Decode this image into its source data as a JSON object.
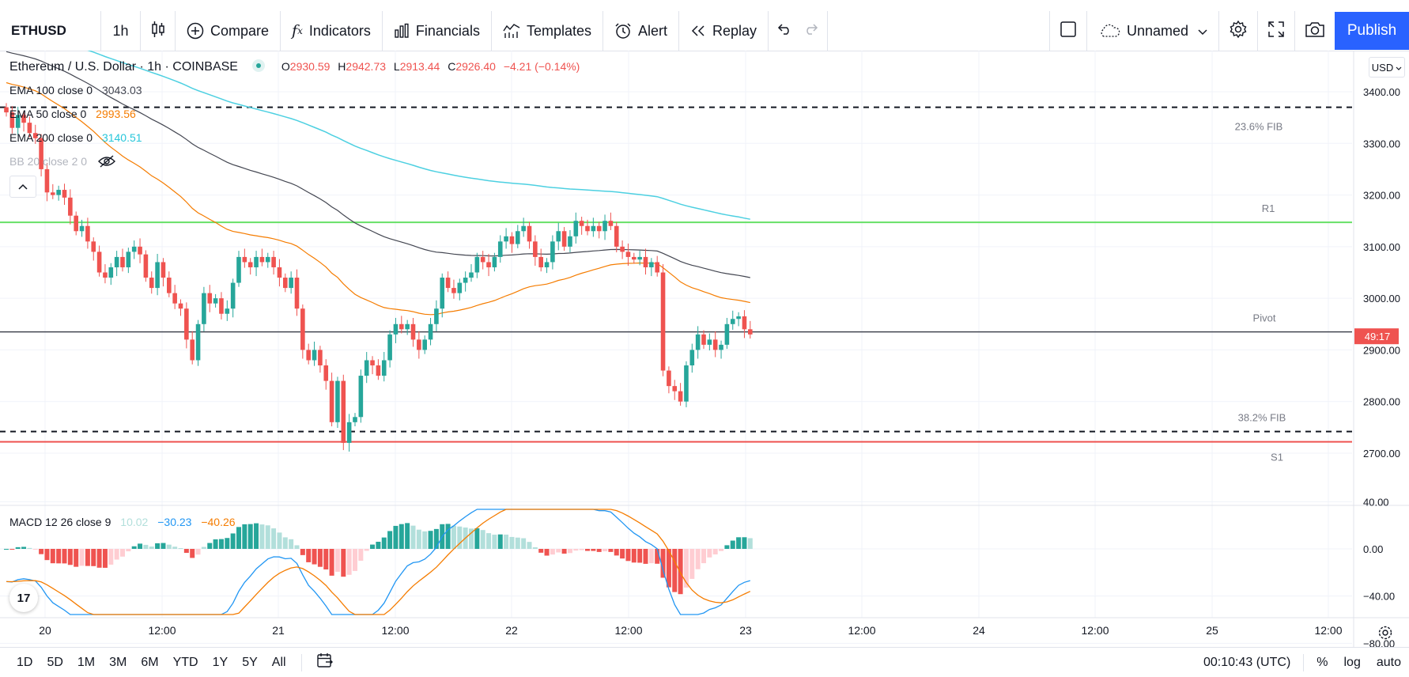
{
  "toolbar": {
    "symbol": "ETHUSD",
    "interval": "1h",
    "compare": "Compare",
    "indicators": "Indicators",
    "financials": "Financials",
    "templates": "Templates",
    "alert": "Alert",
    "replay": "Replay",
    "layout_name": "Unnamed",
    "publish": "Publish",
    "icons": [
      "candles-icon",
      "plus-circle-icon",
      "fx-icon",
      "financials-icon",
      "templates-icon",
      "alarm-clock-icon",
      "replay-icon",
      "undo-icon",
      "redo-icon",
      "square-icon",
      "cloud-icon",
      "chevron-down-icon",
      "gear-icon",
      "fullscreen-icon",
      "camera-icon"
    ]
  },
  "legend": {
    "title": "Ethereum / U.S. Dollar · 1h · COINBASE",
    "o_label": "O",
    "o": "2930.59",
    "h_label": "H",
    "h": "2942.73",
    "l_label": "L",
    "l": "2913.44",
    "c_label": "C",
    "c": "2926.40",
    "change": "−4.21 (−0.14%)",
    "ema100_label": "EMA 100 close 0",
    "ema100": "3043.03",
    "ema50_label": "EMA 50 close 0",
    "ema50": "2993.56",
    "ema200_label": "EMA 200 close 0",
    "ema200": "3140.51",
    "bb_label": "BB 20 close 2 0",
    "macd_label": "MACD 12 26 close 9",
    "macd_hist": "10.02",
    "macd_line": "−30.23",
    "macd_signal": "−40.26"
  },
  "price_axis": {
    "currency": "USD",
    "ticks": [
      "3400.00",
      "3300.00",
      "3200.00",
      "3100.00",
      "3000.00",
      "2900.00",
      "2800.00",
      "2700.00"
    ],
    "countdown": "49:17"
  },
  "macd_axis": {
    "ticks": [
      "40.00",
      "0.00",
      "−40.00",
      "−80.00"
    ]
  },
  "time_axis": {
    "ticks": [
      "20",
      "12:00",
      "21",
      "12:00",
      "22",
      "12:00",
      "23",
      "12:00",
      "24",
      "12:00",
      "25",
      "12:00"
    ]
  },
  "levels": {
    "fib236": "23.6% FIB",
    "r1": "R1",
    "pivot": "Pivot",
    "fib382": "38.2% FIB",
    "s1": "S1"
  },
  "bottom": {
    "ranges": [
      "1D",
      "5D",
      "1M",
      "3M",
      "6M",
      "YTD",
      "1Y",
      "5Y",
      "All"
    ],
    "clock": "00:10:43 (UTC)",
    "percent": "%",
    "log": "log",
    "auto": "auto"
  },
  "colors": {
    "up": "#26a69a",
    "down": "#ef5350",
    "ema50": "#f57c00",
    "ema100": "#434651",
    "ema200": "#4dd0e1",
    "accent": "#2962ff"
  },
  "chart_data": {
    "type": "candlestick",
    "title": "Ethereum / U.S. Dollar · 1h · COINBASE",
    "ylim": [
      2640,
      3470
    ],
    "x_ticks": [
      "20",
      "12:00",
      "21",
      "12:00",
      "22",
      "12:00",
      "23",
      "12:00",
      "24",
      "12:00",
      "25",
      "12:00"
    ],
    "hlines": {
      "fib236": 3370,
      "r1": 3147,
      "pivot": 2935,
      "fib382": 2742,
      "s1": 2722
    },
    "close": [
      3360,
      3330,
      3355,
      3340,
      3320,
      3310,
      3250,
      3205,
      3200,
      3210,
      3195,
      3160,
      3130,
      3140,
      3110,
      3090,
      3050,
      3040,
      3060,
      3080,
      3060,
      3090,
      3100,
      3085,
      3040,
      3020,
      3070,
      3040,
      3010,
      2990,
      2980,
      2920,
      2880,
      2950,
      3010,
      2990,
      3000,
      2970,
      2980,
      3030,
      3080,
      3070,
      3060,
      3080,
      3070,
      3080,
      3060,
      3040,
      3020,
      3040,
      2980,
      2900,
      2880,
      2900,
      2870,
      2840,
      2760,
      2840,
      2720,
      2760,
      2770,
      2850,
      2880,
      2870,
      2850,
      2880,
      2930,
      2950,
      2940,
      2950,
      2920,
      2900,
      2920,
      2950,
      2980,
      3040,
      3020,
      3010,
      3030,
      3040,
      3050,
      3080,
      3070,
      3060,
      3080,
      3110,
      3120,
      3105,
      3130,
      3140,
      3110,
      3080,
      3060,
      3070,
      3110,
      3130,
      3100,
      3120,
      3150,
      3140,
      3130,
      3140,
      3130,
      3150,
      3140,
      3100,
      3090,
      3080,
      3075,
      3080,
      3060,
      3070,
      3050,
      2860,
      2830,
      2820,
      2800,
      2870,
      2900,
      2930,
      2910,
      2920,
      2900,
      2910,
      2950,
      2960,
      2965,
      2940,
      2930
    ]
  }
}
